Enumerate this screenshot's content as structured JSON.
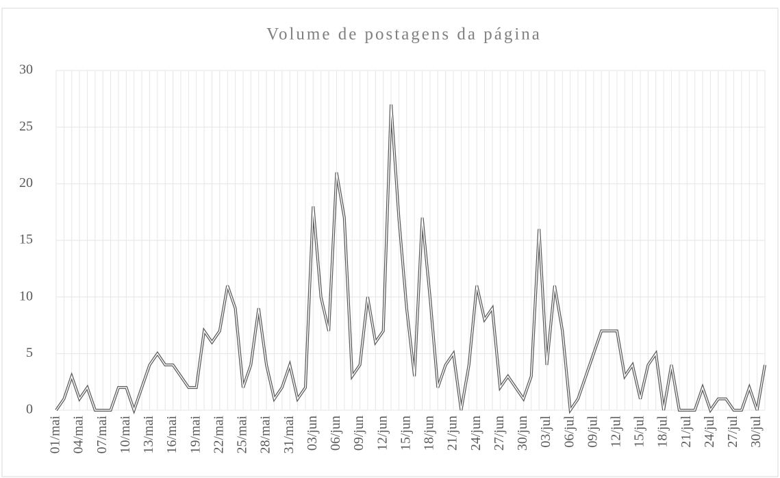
{
  "chart_data": {
    "type": "line",
    "title": "Volume de postagens da página",
    "categories": [
      "01/mai",
      null,
      null,
      "04/mai",
      null,
      null,
      "07/mai",
      null,
      null,
      "10/mai",
      null,
      null,
      "13/mai",
      null,
      null,
      "16/mai",
      null,
      null,
      "19/mai",
      null,
      null,
      "22/mai",
      null,
      null,
      "25/mai",
      null,
      null,
      "28/mai",
      null,
      null,
      "31/mai",
      null,
      null,
      "03/jun",
      null,
      null,
      "06/jun",
      null,
      null,
      "09/jun",
      null,
      null,
      "12/jun",
      null,
      null,
      "15/jun",
      null,
      null,
      "18/jun",
      null,
      null,
      "21/jun",
      null,
      null,
      "24/jun",
      null,
      null,
      "27/jun",
      null,
      null,
      "30/jun",
      null,
      null,
      "03/jul",
      null,
      null,
      "06/jul",
      null,
      null,
      "09/jul",
      null,
      null,
      "12/jul",
      null,
      null,
      "15/jul",
      null,
      null,
      "18/jul",
      null,
      null,
      "21/jul",
      null,
      null,
      "24/jul",
      null,
      null,
      "27/jul",
      null,
      null,
      "30/jul",
      null
    ],
    "values": [
      0,
      1,
      3,
      1,
      2,
      0,
      0,
      0,
      2,
      2,
      0,
      2,
      4,
      5,
      4,
      4,
      3,
      2,
      2,
      7,
      6,
      7,
      11,
      9,
      2,
      4,
      9,
      4,
      1,
      2,
      4,
      1,
      2,
      18,
      10,
      7,
      21,
      17,
      3,
      4,
      10,
      6,
      7,
      27,
      17,
      9,
      3,
      17,
      10,
      2,
      4,
      5,
      0,
      4,
      11,
      8,
      9,
      2,
      3,
      2,
      1,
      3,
      16,
      4,
      11,
      7,
      0,
      1,
      3,
      5,
      7,
      7,
      7,
      3,
      4,
      1,
      4,
      5,
      0,
      4,
      0,
      0,
      0,
      2,
      0,
      1,
      1,
      0,
      0,
      2,
      0,
      4
    ],
    "color": "#595959",
    "ylim": [
      0,
      30
    ],
    "yticks": [
      0,
      5,
      10,
      15,
      20,
      25,
      30
    ],
    "grid": true
  }
}
